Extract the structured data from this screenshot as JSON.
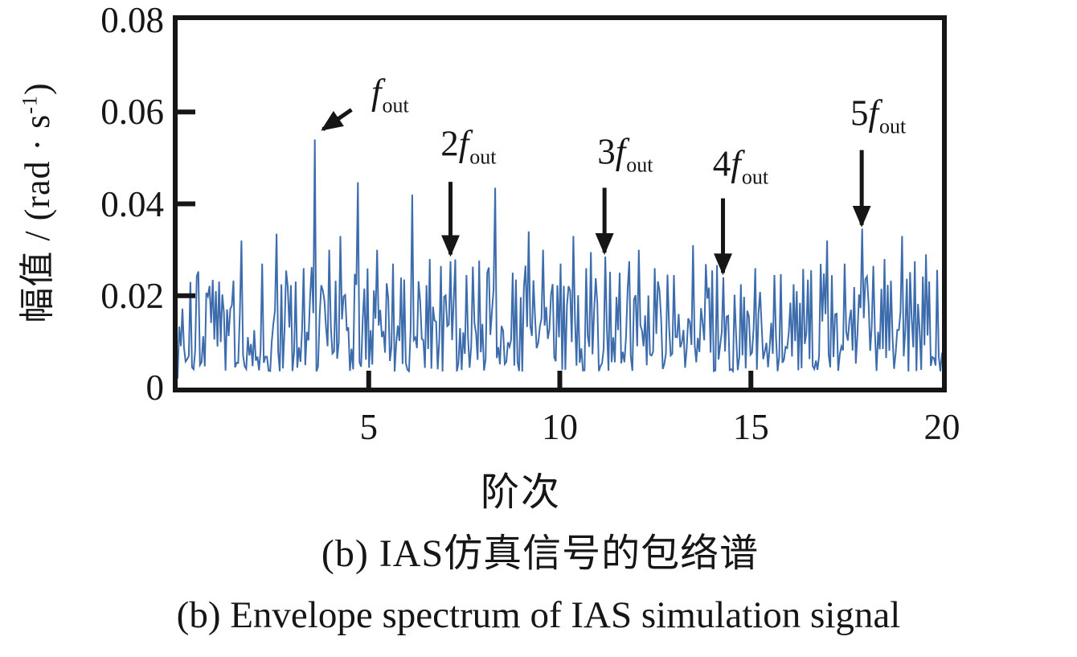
{
  "figure": {
    "y_axis": {
      "label_pre": "幅值 / (rad · s",
      "label_sup": "-1",
      "label_post": ")",
      "min": 0,
      "max": 0.08,
      "ticks": [
        {
          "text": "0.08",
          "value": 0.08
        },
        {
          "text": "0.06",
          "value": 0.06
        },
        {
          "text": "0.04",
          "value": 0.04
        },
        {
          "text": "0.02",
          "value": 0.02
        },
        {
          "text": "0",
          "value": 0
        }
      ],
      "inner_tick_values": [
        0.02,
        0.04,
        0.06
      ]
    },
    "x_axis": {
      "label": "阶次",
      "min": 0,
      "max": 20,
      "ticks": [
        {
          "text": "5",
          "value": 5
        },
        {
          "text": "10",
          "value": 10
        },
        {
          "text": "15",
          "value": 15
        },
        {
          "text": "20",
          "value": 20
        }
      ],
      "inner_tick_values": [
        5,
        10,
        15
      ]
    },
    "caption_zh": "(b) IAS仿真信号的包络谱",
    "caption_en": "(b) Envelope spectrum of IAS simulation signal",
    "annotations": [
      {
        "prefix": "",
        "main": "f",
        "sub": "out",
        "label_at": [
          5.55,
          0.0638
        ],
        "arrow_from": [
          4.55,
          0.0605
        ],
        "arrow_to": [
          3.8,
          0.0562
        ]
      },
      {
        "prefix": "2",
        "main": "f",
        "sub": "out",
        "label_at": [
          7.6,
          0.0525
        ],
        "arrow_from": [
          7.14,
          0.0448
        ],
        "arrow_to": [
          7.14,
          0.029
        ]
      },
      {
        "prefix": "3",
        "main": "f",
        "sub": "out",
        "label_at": [
          11.7,
          0.0508
        ],
        "arrow_from": [
          11.17,
          0.0435
        ],
        "arrow_to": [
          11.17,
          0.0294
        ]
      },
      {
        "prefix": "4",
        "main": "f",
        "sub": "out",
        "label_at": [
          14.72,
          0.0482
        ],
        "arrow_from": [
          14.27,
          0.0412
        ],
        "arrow_to": [
          14.27,
          0.025
        ]
      },
      {
        "prefix": "5",
        "main": "f",
        "sub": "out",
        "label_at": [
          18.32,
          0.0592
        ],
        "arrow_from": [
          17.9,
          0.0517
        ],
        "arrow_to": [
          17.9,
          0.0354
        ]
      }
    ]
  },
  "chart_data": {
    "type": "line",
    "title": "",
    "xlabel": "阶次",
    "ylabel": "幅值 / (rad · s⁻¹)",
    "xlim": [
      0,
      20
    ],
    "ylim": [
      0,
      0.08
    ],
    "grid": false,
    "legend": false,
    "line_color": "#3C6CAC",
    "axis_color": "#161616",
    "labeled_peaks": [
      {
        "label": "f_out",
        "order": 3.61,
        "amplitude": 0.054
      },
      {
        "label": "2f_out",
        "order": 7.14,
        "amplitude": 0.0275
      },
      {
        "label": "3f_out",
        "order": 11.17,
        "amplitude": 0.0285
      },
      {
        "label": "4f_out",
        "order": 14.27,
        "amplitude": 0.024
      },
      {
        "label": "5f_out",
        "order": 17.9,
        "amplitude": 0.0346
      }
    ],
    "other_peaks": [
      [
        0.35,
        0.023
      ],
      [
        1.0,
        0.021
      ],
      [
        1.66,
        0.032
      ],
      [
        2.2,
        0.027
      ],
      [
        2.58,
        0.0335
      ],
      [
        3.3,
        0.026
      ],
      [
        3.95,
        0.03
      ],
      [
        4.25,
        0.033
      ],
      [
        4.7,
        0.0447
      ],
      [
        5.2,
        0.03
      ],
      [
        5.65,
        0.027
      ],
      [
        6.15,
        0.042
      ],
      [
        6.6,
        0.028
      ],
      [
        7.55,
        0.0245
      ],
      [
        8.3,
        0.0435
      ],
      [
        8.75,
        0.025
      ],
      [
        9.2,
        0.034
      ],
      [
        9.55,
        0.03
      ],
      [
        10.0,
        0.027
      ],
      [
        10.35,
        0.033
      ],
      [
        10.8,
        0.0295
      ],
      [
        11.55,
        0.025
      ],
      [
        12.05,
        0.03
      ],
      [
        12.5,
        0.026
      ],
      [
        13.0,
        0.0245
      ],
      [
        13.5,
        0.031
      ],
      [
        14.0,
        0.0255
      ],
      [
        14.75,
        0.0225
      ],
      [
        15.1,
        0.026
      ],
      [
        15.6,
        0.0245
      ],
      [
        16.1,
        0.0225
      ],
      [
        16.5,
        0.0235
      ],
      [
        17.0,
        0.032
      ],
      [
        17.45,
        0.027
      ],
      [
        18.2,
        0.0265
      ],
      [
        18.5,
        0.028
      ],
      [
        18.95,
        0.033
      ],
      [
        19.3,
        0.0275
      ],
      [
        19.6,
        0.029
      ]
    ],
    "noise_floor": {
      "min": 0.003,
      "typical": 0.014,
      "max": 0.028
    },
    "generator": {
      "seed": 20,
      "n_points": 480,
      "noise_base": 0.0035,
      "noise_span": 0.0235,
      "noise_exp": 1.7,
      "spike_prob": 0.05,
      "spike_min": 0.02,
      "spike_span": 0.009
    }
  }
}
